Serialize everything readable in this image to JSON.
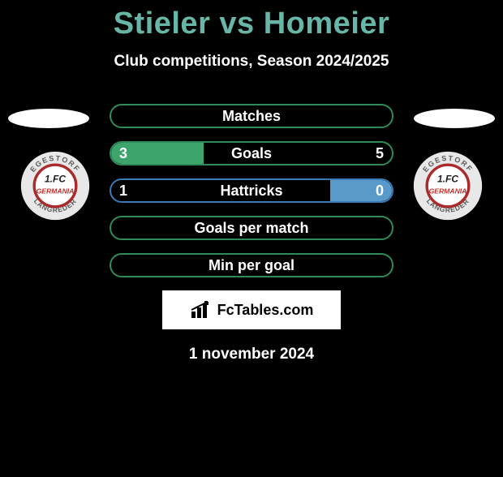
{
  "title": "Stieler vs Homeier",
  "subtitle": "Club competitions, Season 2024/2025",
  "date": "1 november 2024",
  "brand": "FcTables.com",
  "colors": {
    "green_border": "#2e8b57",
    "green_fill": "#3da56b",
    "blue_border": "#3a7ab5",
    "blue_fill": "#5a9acb",
    "title_color": "#68b6a8",
    "bg": "#000000",
    "white": "#ffffff"
  },
  "club_badge": {
    "outer_ring_bg": "#e8e8e8",
    "text_color": "#5a5a5a",
    "inner_stroke": "#aa2b2b",
    "inner_fill": "#ffffff",
    "germania_color": "#c0302b",
    "fc_color": "#222222",
    "top_text": "EGESTORF",
    "bottom_text": "LANGREDER",
    "line1": "1.FC",
    "line2": "GERMANIA"
  },
  "stats": [
    {
      "label": "Matches",
      "left_value": null,
      "right_value": null,
      "left_pct": 0,
      "right_pct": 0,
      "border": "#2e8b57",
      "left_fill": "#3da56b",
      "right_fill": "#5a9acb"
    },
    {
      "label": "Goals",
      "left_value": "3",
      "right_value": "5",
      "left_pct": 33,
      "right_pct": 0,
      "border": "#2e8b57",
      "left_fill": "#3da56b",
      "right_fill": "#5a9acb"
    },
    {
      "label": "Hattricks",
      "left_value": "1",
      "right_value": "0",
      "left_pct": 0,
      "right_pct": 22,
      "border": "#3a7ab5",
      "left_fill": "#3da56b",
      "right_fill": "#5a9acb"
    },
    {
      "label": "Goals per match",
      "left_value": null,
      "right_value": null,
      "left_pct": 0,
      "right_pct": 0,
      "border": "#2e8b57",
      "left_fill": "#3da56b",
      "right_fill": "#5a9acb"
    },
    {
      "label": "Min per goal",
      "left_value": null,
      "right_value": null,
      "left_pct": 0,
      "right_pct": 0,
      "border": "#2e8b57",
      "left_fill": "#3da56b",
      "right_fill": "#5a9acb"
    }
  ]
}
